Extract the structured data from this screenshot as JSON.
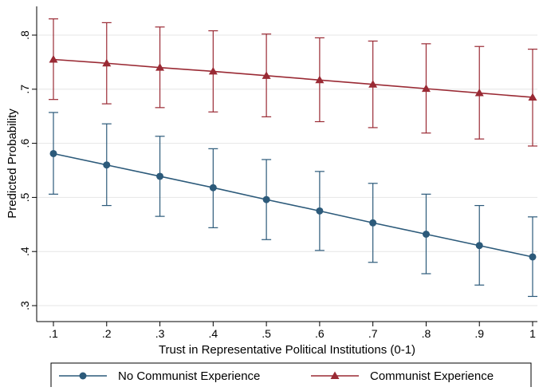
{
  "chart_data": {
    "type": "line",
    "title": "",
    "xlabel": "Trust in Representative Political Institutions (0-1)",
    "ylabel": "Predicted Probability",
    "x": [
      0.1,
      0.2,
      0.3,
      0.4,
      0.5,
      0.6,
      0.7,
      0.8,
      0.9,
      1.0
    ],
    "x_tick_labels": [
      ".1",
      ".2",
      ".3",
      ".4",
      ".5",
      ".6",
      ".7",
      ".8",
      ".9",
      "1"
    ],
    "y_ticks": [
      0.3,
      0.4,
      0.5,
      0.6,
      0.7,
      0.8
    ],
    "y_tick_labels": [
      ".3",
      ".4",
      ".5",
      ".6",
      ".7",
      ".8"
    ],
    "xlim": [
      0.1,
      1.0
    ],
    "ylim": [
      0.3,
      0.8
    ],
    "grid": true,
    "legend_position": "bottom",
    "series": [
      {
        "name": "No Communist Experience",
        "marker": "circle",
        "color": "#2c5a7a",
        "values": [
          0.581,
          0.56,
          0.539,
          0.518,
          0.496,
          0.475,
          0.453,
          0.432,
          0.411,
          0.39
        ],
        "lower": [
          0.506,
          0.485,
          0.465,
          0.444,
          0.422,
          0.402,
          0.38,
          0.359,
          0.338,
          0.317
        ],
        "upper": [
          0.657,
          0.636,
          0.613,
          0.59,
          0.57,
          0.548,
          0.526,
          0.506,
          0.485,
          0.464
        ]
      },
      {
        "name": "Communist Experience",
        "marker": "triangle",
        "color": "#9a2a34",
        "values": [
          0.755,
          0.748,
          0.74,
          0.733,
          0.725,
          0.717,
          0.709,
          0.701,
          0.693,
          0.685
        ],
        "lower": [
          0.681,
          0.673,
          0.666,
          0.658,
          0.649,
          0.64,
          0.629,
          0.619,
          0.608,
          0.595
        ],
        "upper": [
          0.83,
          0.823,
          0.815,
          0.808,
          0.802,
          0.795,
          0.789,
          0.784,
          0.779,
          0.774
        ]
      }
    ]
  }
}
